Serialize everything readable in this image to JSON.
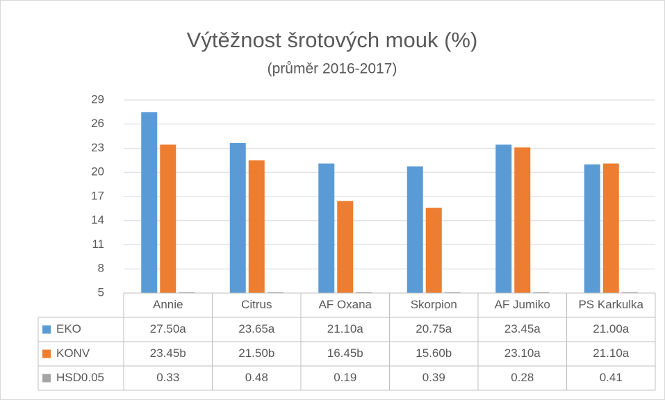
{
  "chart_data": {
    "type": "bar",
    "title": "Výtěžnost šrotových mouk (%)",
    "subtitle": "(průměr 2016-2017)",
    "categories": [
      "Annie",
      "Citrus",
      "AF Oxana",
      "Skorpion",
      "AF Jumiko",
      "PS Karkulka"
    ],
    "series": [
      {
        "name": "EKO",
        "color": "#5b9bd5",
        "values": [
          27.5,
          23.65,
          21.1,
          20.75,
          23.45,
          21.0
        ],
        "value_labels": [
          "27.50a",
          "23.65a",
          "21.10a",
          "20.75a",
          "23.45a",
          "21.00a"
        ]
      },
      {
        "name": "KONV",
        "color": "#ed7d31",
        "values": [
          23.45,
          21.5,
          16.45,
          15.6,
          23.1,
          21.1
        ],
        "value_labels": [
          "23.45b",
          "21.50b",
          "16.45b",
          "15.60b",
          "23.10a",
          "21.10a"
        ]
      },
      {
        "name": "HSD0.05",
        "color": "#a5a5a5",
        "values": [
          0.33,
          0.48,
          0.19,
          0.39,
          0.28,
          0.41
        ]
      }
    ],
    "ylim": [
      5,
      29
    ],
    "yticks": [
      5,
      8,
      11,
      14,
      17,
      20,
      23,
      26,
      29
    ],
    "grid": true,
    "data_table": true
  }
}
